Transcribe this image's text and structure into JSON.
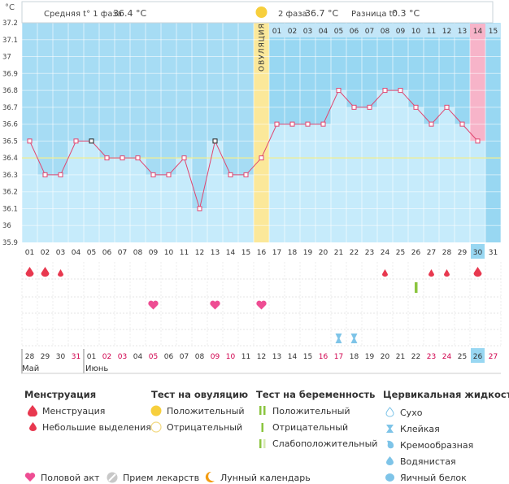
{
  "header": {
    "unit": "°C",
    "phase1_label": "Средняя t° 1 фаза",
    "phase1_value": "36.4 °C",
    "phase2_label": "2 фаза",
    "phase2_value": "36.7 °C",
    "diff_label": "Разница t°",
    "diff_value": "0.3 °C",
    "ovulation_label": "ОВУЛЯЦИЯ"
  },
  "colors": {
    "phase1": "#c6ebfb",
    "phase2": "#98d7f2",
    "ovulation": "#fbe89a",
    "today": "#f7b4c9",
    "line": "#e0456f",
    "coverline": "#f2ee8c",
    "menstruation": "#e8384f",
    "heart": "#ee4d93",
    "ovulation_test": "#f7cf3d",
    "pregnancy_test": "#8bc53f",
    "cervical": "#7ec4e8",
    "moon": "#f39c12",
    "red_date": "#d0004d"
  },
  "chart_data": {
    "type": "line",
    "title": "",
    "ylabel": "°C",
    "ylim": [
      35.9,
      37.2
    ],
    "yticks": [
      36,
      36.1,
      36.2,
      36.3,
      36.4,
      36.5,
      36.6,
      36.7,
      36.8,
      36.9,
      37,
      37.1,
      37.2
    ],
    "ytick_labels": [
      "36",
      "36.1",
      "36.2",
      "36.3",
      "36.4",
      "36.5",
      "36.6",
      "36.7",
      "36.8",
      "36.9",
      "37",
      "37.1",
      "37.2"
    ],
    "coverline": 36.4,
    "ovulation_day": 16,
    "today_day": 30,
    "cycle_days": [
      "01",
      "02",
      "03",
      "04",
      "05",
      "06",
      "07",
      "08",
      "09",
      "10",
      "11",
      "12",
      "13",
      "14",
      "15",
      "16",
      "17",
      "18",
      "19",
      "20",
      "21",
      "22",
      "23",
      "24",
      "25",
      "26",
      "27",
      "28",
      "29",
      "30",
      "31"
    ],
    "phase2_day_labels": [
      "01",
      "02",
      "03",
      "04",
      "05",
      "06",
      "07",
      "08",
      "09",
      "10",
      "11",
      "12",
      "13",
      "14",
      "15"
    ],
    "series": [
      {
        "name": "Температура",
        "values": [
          36.5,
          36.3,
          36.3,
          36.5,
          36.5,
          36.4,
          36.4,
          36.4,
          36.3,
          36.3,
          36.4,
          36.1,
          36.5,
          36.3,
          36.3,
          36.4,
          36.6,
          36.6,
          36.6,
          36.6,
          36.8,
          36.7,
          36.7,
          36.8,
          36.8,
          36.7,
          36.6,
          36.7,
          36.6,
          36.5,
          null
        ],
        "marker_alt_days": [
          5,
          13
        ]
      }
    ],
    "calendar_dates": [
      "28",
      "29",
      "30",
      "31",
      "01",
      "02",
      "03",
      "04",
      "05",
      "06",
      "07",
      "08",
      "09",
      "10",
      "11",
      "12",
      "13",
      "14",
      "15",
      "16",
      "17",
      "18",
      "19",
      "20",
      "21",
      "22",
      "23",
      "24",
      "25",
      "26",
      "27"
    ],
    "calendar_red": [
      4,
      6,
      7,
      9,
      13,
      14,
      20,
      21,
      27,
      28,
      31
    ],
    "calendar_current": 30,
    "month1": "Май",
    "month2": "Июнь",
    "menstruation": [
      {
        "day": 1,
        "size": "big"
      },
      {
        "day": 2,
        "size": "big"
      },
      {
        "day": 3,
        "size": "small"
      },
      {
        "day": 24,
        "size": "small"
      },
      {
        "day": 27,
        "size": "small"
      },
      {
        "day": 28,
        "size": "small"
      },
      {
        "day": 30,
        "size": "big"
      }
    ],
    "intercourse_days": [
      9,
      13,
      16
    ],
    "pregnancy_test": [
      {
        "day": 26,
        "kind": "weak"
      }
    ],
    "cervical": [
      {
        "day": 21,
        "kind": "sticky"
      },
      {
        "day": 22,
        "kind": "sticky"
      }
    ]
  },
  "legend": {
    "menstruation": {
      "title": "Менструация",
      "items": [
        "Менструация",
        "Небольшие выделения"
      ]
    },
    "ovulation_test": {
      "title": "Тест на овуляцию",
      "items": [
        "Положительный",
        "Отрицательный"
      ]
    },
    "pregnancy_test": {
      "title": "Тест на беременность",
      "items": [
        "Положительный",
        "Отрицательный",
        "Слабоположительный"
      ]
    },
    "cervical": {
      "title": "Цервикальная жидкость",
      "items": [
        "Сухо",
        "Клейкая",
        "Кремообразная",
        "Водянистая",
        "Яичный белок"
      ]
    },
    "bottom": [
      "Половой акт",
      "Прием лекарств",
      "Лунный календарь"
    ]
  }
}
